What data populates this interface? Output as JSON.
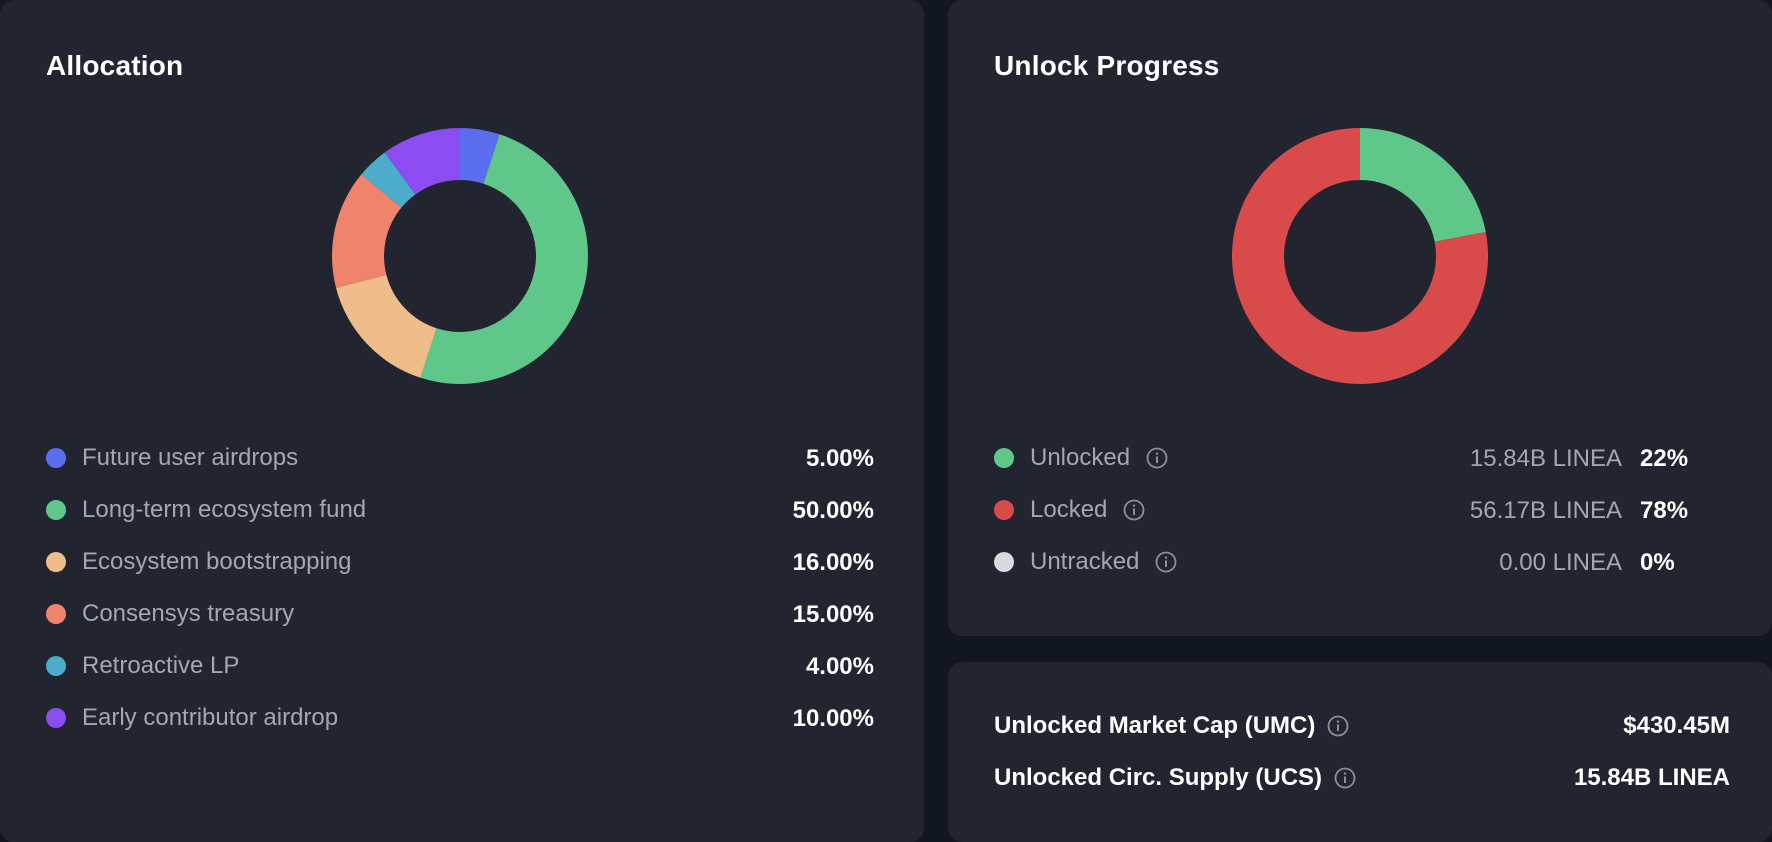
{
  "allocation": {
    "title": "Allocation",
    "items": [
      {
        "label": "Future user airdrops",
        "percent": "5.00%",
        "value": 5,
        "color": "#5b6ef0"
      },
      {
        "label": "Long-term ecosystem fund",
        "percent": "50.00%",
        "value": 50,
        "color": "#5fc78a"
      },
      {
        "label": "Ecosystem bootstrapping",
        "percent": "16.00%",
        "value": 16,
        "color": "#eebd8a"
      },
      {
        "label": "Consensys treasury",
        "percent": "15.00%",
        "value": 15,
        "color": "#ef836b"
      },
      {
        "label": "Retroactive LP",
        "percent": "4.00%",
        "value": 4,
        "color": "#4cadcb"
      },
      {
        "label": "Early contributor airdrop",
        "percent": "10.00%",
        "value": 10,
        "color": "#8b4cf2"
      }
    ]
  },
  "unlock": {
    "title": "Unlock Progress",
    "items": [
      {
        "label": "Unlocked",
        "amount": "15.84B LINEA",
        "percent": "22%",
        "value": 22,
        "color": "#5fc78a",
        "icon": "info-icon"
      },
      {
        "label": "Locked",
        "amount": "56.17B LINEA",
        "percent": "78%",
        "value": 78,
        "color": "#d94b4b",
        "icon": "info-icon"
      },
      {
        "label": "Untracked",
        "amount": "0.00 LINEA",
        "percent": "0%",
        "value": 0,
        "color": "#d9dade",
        "icon": "info-icon"
      }
    ]
  },
  "stats": {
    "umc_label": "Unlocked Market Cap (UMC)",
    "umc_value": "$430.45M",
    "ucs_label": "Unlocked Circ. Supply (UCS)",
    "ucs_value": "15.84B LINEA"
  },
  "colors": {
    "background": "#121620",
    "card": "#222430",
    "muted_text": "#a3a6b4",
    "icon": "#8d909c"
  }
}
